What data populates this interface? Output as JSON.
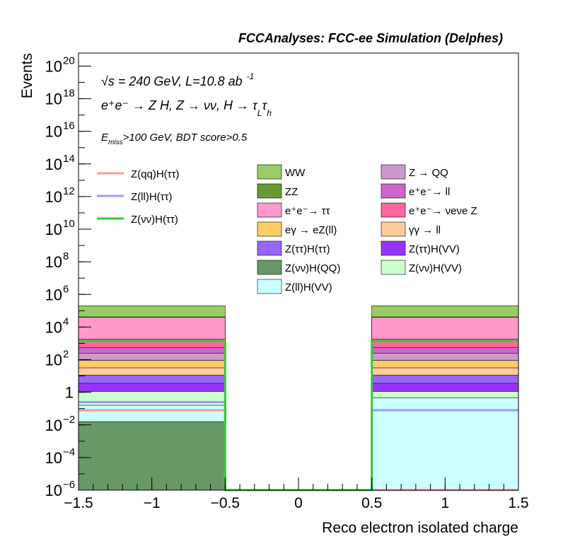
{
  "chart_data": {
    "type": "bar",
    "title": "FCCAnalyses: FCC-ee Simulation (Delphes)",
    "xlabel": "Reco electron isolated charge",
    "ylabel": "Events",
    "xlim": [
      -1.5,
      1.5
    ],
    "ylim_log10": [
      -6,
      20.8
    ],
    "y_scale": "log",
    "x_ticks": [
      {
        "v": -1.5,
        "label": "−1.5"
      },
      {
        "v": -1,
        "label": "−1"
      },
      {
        "v": -0.5,
        "label": "−0.5"
      },
      {
        "v": 0,
        "label": "0"
      },
      {
        "v": 0.5,
        "label": "0.5"
      },
      {
        "v": 1,
        "label": "1"
      },
      {
        "v": 1.5,
        "label": "1.5"
      }
    ],
    "y_ticks": [
      {
        "e": -6,
        "base": "10",
        "exp": "−6"
      },
      {
        "e": -4,
        "base": "10",
        "exp": "−4"
      },
      {
        "e": -2,
        "base": "10",
        "exp": "−2"
      },
      {
        "e": 0,
        "base": "1",
        "exp": ""
      },
      {
        "e": 2,
        "base": "10",
        "exp": "2"
      },
      {
        "e": 4,
        "base": "10",
        "exp": "4"
      },
      {
        "e": 6,
        "base": "10",
        "exp": "6"
      },
      {
        "e": 8,
        "base": "10",
        "exp": "8"
      },
      {
        "e": 10,
        "base": "10",
        "exp": "10"
      },
      {
        "e": 12,
        "base": "10",
        "exp": "12"
      },
      {
        "e": 14,
        "base": "10",
        "exp": "14"
      },
      {
        "e": 16,
        "base": "10",
        "exp": "16"
      },
      {
        "e": 18,
        "base": "10",
        "exp": "18"
      },
      {
        "e": 20,
        "base": "10",
        "exp": "20"
      }
    ],
    "annotations": {
      "line1": "√s = 240 GeV, L=10.8 ab",
      "line1_sup": "-1",
      "line2": "e⁺e⁻ → Z H, Z → νν, H → τ",
      "line2_sub1": "L",
      "line2_tau": "τ",
      "line2_sub2": "h",
      "line3_pre": "E",
      "line3_sub": "miss",
      "line3_post": ">100 GeV, BDT score>0.5"
    },
    "bins": [
      {
        "x0": -1.5,
        "x1": -0.5
      },
      {
        "x0": -0.5,
        "x1": 0.5
      },
      {
        "x0": 0.5,
        "x1": 1.5
      }
    ],
    "stack_bottom_log10": -6,
    "stacked_series": [
      {
        "name": "Z(νν)H(QQ)",
        "color": "#669966",
        "values_log10": [
          -1.8,
          -6,
          -6
        ]
      },
      {
        "name": "Z(ll)H(VV)",
        "color": "#ccffff",
        "values_log10": [
          -0.8,
          -6,
          -0.35
        ]
      },
      {
        "name": "Z(νν)H(VV)",
        "color": "#ccffcc",
        "values_log10": [
          0.05,
          -6,
          0.05
        ]
      },
      {
        "name": "Z(ττ)H(VV)",
        "color": "#9933ff",
        "values_log10": [
          0.55,
          -6,
          0.55
        ]
      },
      {
        "name": "Z(ττ)H(ττ)",
        "color": "#9966ff",
        "values_log10": [
          1.05,
          -6,
          1.05
        ]
      },
      {
        "name": "γγ → ll",
        "color": "#ffcc99",
        "values_log10": [
          1.5,
          -6,
          1.5
        ]
      },
      {
        "name": "eγ → eZ(ll)",
        "color": "#ffcc66",
        "values_log10": [
          1.95,
          -6,
          1.95
        ]
      },
      {
        "name": "Z → QQ",
        "color": "#cc99cc",
        "values_log10": [
          2.4,
          -6,
          2.4
        ]
      },
      {
        "name": "e⁺e⁻→ ll",
        "color": "#cc66cc",
        "values_log10": [
          2.75,
          -6,
          2.75
        ]
      },
      {
        "name": "e⁺e⁻→ ν_e ν_e Z",
        "color": "#ff6699",
        "values_log10": [
          3.25,
          -6,
          3.25
        ]
      },
      {
        "name": "e⁺e⁻→ ττ",
        "color": "#ff99cc",
        "values_log10": [
          4.6,
          -6,
          4.6
        ]
      },
      {
        "name": "ZZ",
        "color": "#669933",
        "values_log10": [
          4.62,
          -6,
          4.62
        ]
      },
      {
        "name": "WW",
        "color": "#99cc66",
        "values_log10": [
          5.3,
          -6,
          5.3
        ]
      }
    ],
    "signal_series": [
      {
        "name": "Z(qq)H(ττ)",
        "color": "#ff9999",
        "values_log10": [
          -1.1,
          -6,
          -6
        ]
      },
      {
        "name": "Z(ll)H(ττ)",
        "color": "#9999ff",
        "values_log10": [
          -0.6,
          -6,
          -1.1
        ]
      },
      {
        "name": "Z(νν)H(ττ)",
        "color": "#33cc33",
        "values_log10": [
          3.15,
          -6,
          3.15
        ]
      }
    ],
    "legend_signals": [
      {
        "label": "Z(qq)H(ττ)",
        "color": "#ff9999"
      },
      {
        "label": "Z(ll)H(ττ)",
        "color": "#9999ff"
      },
      {
        "label": "Z(νν)H(ττ)",
        "color": "#33cc33"
      }
    ],
    "legend_backgrounds": [
      {
        "label": "WW",
        "color": "#99cc66"
      },
      {
        "label": "Z → QQ",
        "color": "#cc99cc"
      },
      {
        "label": "ZZ",
        "color": "#669933"
      },
      {
        "label": "e⁺e⁻→ ll",
        "color": "#cc66cc"
      },
      {
        "label": "e⁺e⁻→ ττ",
        "color": "#ff99cc"
      },
      {
        "label": "e⁺e⁻→ νeνe Z",
        "color": "#ff6699"
      },
      {
        "label": "eγ → eZ(ll)",
        "color": "#ffcc66"
      },
      {
        "label": "γγ → ll",
        "color": "#ffcc99"
      },
      {
        "label": "Z(ττ)H(ττ)",
        "color": "#9966ff"
      },
      {
        "label": "Z(ττ)H(VV)",
        "color": "#9933ff"
      },
      {
        "label": "Z(νν)H(QQ)",
        "color": "#669966"
      },
      {
        "label": "Z(νν)H(VV)",
        "color": "#ccffcc"
      },
      {
        "label": "Z(ll)H(VV)",
        "color": "#ccffff"
      }
    ]
  }
}
